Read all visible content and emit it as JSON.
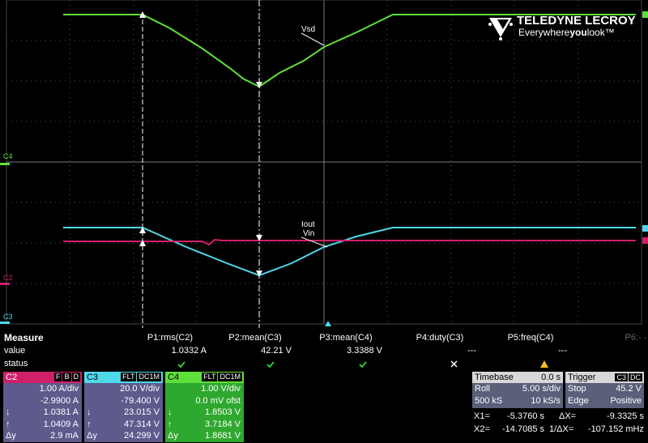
{
  "logo": {
    "brand": "TELEDYNE LECROY",
    "tag_a": "Everywhere",
    "tag_b": "you",
    "tag_c": "look™"
  },
  "traces": {
    "vsd": "Vsd",
    "iout": "Iout",
    "vin": "Vin"
  },
  "markers": {
    "c4": "C4",
    "c2": "C2",
    "c3": "C3"
  },
  "measure": {
    "title": "Measure",
    "params": [
      "P1:rms(C2)",
      "P2:mean(C3)",
      "P3:mean(C4)",
      "P4:duty(C3)",
      "P5:freq(C4)",
      "P6:- -"
    ],
    "value_label": "value",
    "values": [
      "1.0332 A",
      "42.21 V",
      "3.3388 V",
      "---",
      "---"
    ],
    "status_label": "status"
  },
  "channels": [
    {
      "name": "C2",
      "tags": [
        "F",
        "B",
        "D"
      ],
      "rows": [
        {
          "v": "1.00 A/div"
        },
        {
          "v": "-2.9900 A"
        },
        {
          "s": "↓",
          "v": "1.0381 A"
        },
        {
          "s": "↑",
          "v": "1.0409 A"
        },
        {
          "s": "Δy",
          "v": "2.9 mA"
        }
      ]
    },
    {
      "name": "C3",
      "tags": [
        "FLT",
        "DC1M"
      ],
      "rows": [
        {
          "v": "20.0 V/div"
        },
        {
          "v": "-79.400 V"
        },
        {
          "s": "↓",
          "v": "23.015 V"
        },
        {
          "s": "↑",
          "v": "47.314 V"
        },
        {
          "s": "Δy",
          "v": "24.299 V"
        }
      ]
    },
    {
      "name": "C4",
      "tags": [
        "FLT",
        "DC1M"
      ],
      "rows": [
        {
          "v": "1.00 V/div"
        },
        {
          "v": "0.0 mV ofst"
        },
        {
          "s": "↓",
          "v": "1.8503 V"
        },
        {
          "s": "↑",
          "v": "3.7184 V"
        },
        {
          "s": "Δy",
          "v": "1.8681 V"
        }
      ]
    }
  ],
  "timebase": {
    "title": "Timebase",
    "delay": "0.0 s",
    "mode": "Roll",
    "scale": "5.00 s/div",
    "samples": "500 kS",
    "rate": "10 kS/s"
  },
  "trigger": {
    "title": "Trigger",
    "source": "C3",
    "coupling": "DC",
    "state": "Stop",
    "level": "45.2 V",
    "type": "Edge",
    "slope": "Positive"
  },
  "cursors": {
    "x1_label": "X1=",
    "x1": "-5.3760 s",
    "dx_label": "ΔX=",
    "dx": "-9.3325 s",
    "x2_label": "X2=",
    "x2": "-14.7085 s",
    "inv_label": "1/ΔX=",
    "inv": "-107.152 mHz"
  }
}
